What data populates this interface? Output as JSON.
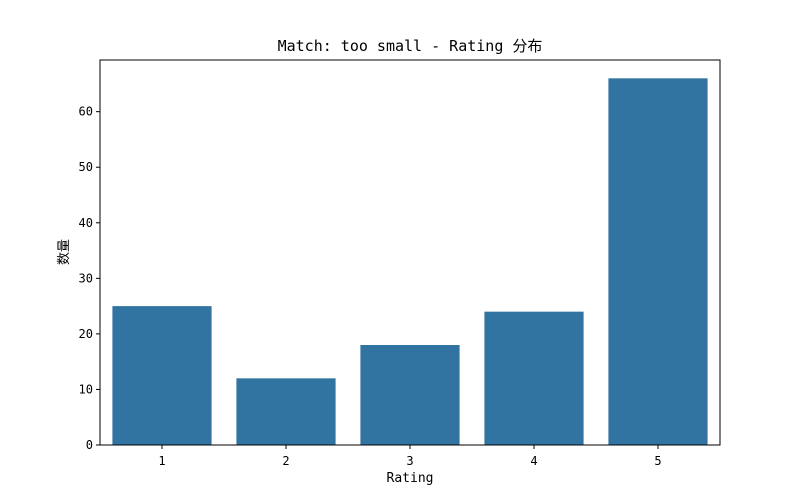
{
  "chart_data": {
    "type": "bar",
    "title": "Match: too small - Rating 分布",
    "xlabel": "Rating",
    "ylabel": "数量",
    "categories": [
      "1",
      "2",
      "3",
      "4",
      "5"
    ],
    "values": [
      25,
      12,
      18,
      24,
      66
    ],
    "ylim": [
      0,
      69.3
    ],
    "yticks": [
      0,
      10,
      20,
      30,
      40,
      50,
      60
    ],
    "bar_color": "#3274a1",
    "grid": false,
    "legend": false
  }
}
